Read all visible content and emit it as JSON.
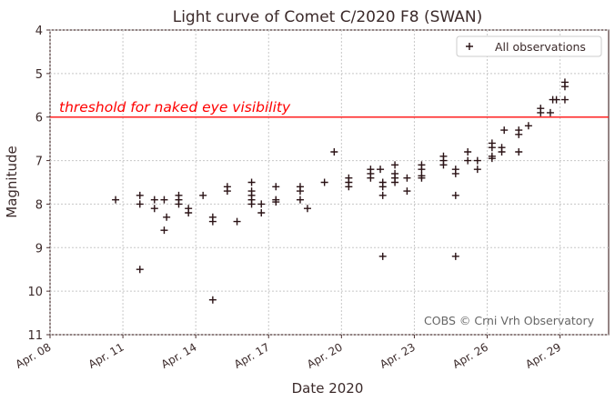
{
  "chart_data": {
    "type": "scatter",
    "title": "Light curve of Comet C/2020 F8 (SWAN)",
    "xlabel": "Date 2020",
    "ylabel": "Magnitude",
    "xlim": [
      8,
      31
    ],
    "ylim": [
      11,
      4
    ],
    "y_inverted": true,
    "grid": true,
    "x_ticks": [
      {
        "value": 8,
        "label": "Apr. 08"
      },
      {
        "value": 11,
        "label": "Apr. 11"
      },
      {
        "value": 14,
        "label": "Apr. 14"
      },
      {
        "value": 17,
        "label": "Apr. 17"
      },
      {
        "value": 20,
        "label": "Apr. 20"
      },
      {
        "value": 23,
        "label": "Apr. 23"
      },
      {
        "value": 26,
        "label": "Apr. 26"
      },
      {
        "value": 29,
        "label": "Apr. 29"
      }
    ],
    "y_ticks": [
      4,
      5,
      6,
      7,
      8,
      9,
      10,
      11
    ],
    "legend": {
      "position": "top-right",
      "entries": [
        "All observations"
      ]
    },
    "series": [
      {
        "name": "All observations",
        "marker": "+",
        "color": "#2a1215",
        "points": [
          [
            10.7,
            7.9
          ],
          [
            11.7,
            7.8
          ],
          [
            11.7,
            8.0
          ],
          [
            11.7,
            9.5
          ],
          [
            12.3,
            7.9
          ],
          [
            12.3,
            8.1
          ],
          [
            12.7,
            7.9
          ],
          [
            12.8,
            8.3
          ],
          [
            12.7,
            8.6
          ],
          [
            13.3,
            7.8
          ],
          [
            13.3,
            7.9
          ],
          [
            13.3,
            8.0
          ],
          [
            13.7,
            8.1
          ],
          [
            13.7,
            8.2
          ],
          [
            14.3,
            7.8
          ],
          [
            14.7,
            8.3
          ],
          [
            14.7,
            8.4
          ],
          [
            14.7,
            10.2
          ],
          [
            15.3,
            7.6
          ],
          [
            15.3,
            7.7
          ],
          [
            15.7,
            8.4
          ],
          [
            16.3,
            7.5
          ],
          [
            16.3,
            7.7
          ],
          [
            16.3,
            7.8
          ],
          [
            16.3,
            7.9
          ],
          [
            16.3,
            8.0
          ],
          [
            16.7,
            8.0
          ],
          [
            16.7,
            8.2
          ],
          [
            17.3,
            7.6
          ],
          [
            17.3,
            7.9
          ],
          [
            17.3,
            7.95
          ],
          [
            18.3,
            7.6
          ],
          [
            18.3,
            7.7
          ],
          [
            18.3,
            7.9
          ],
          [
            18.6,
            8.1
          ],
          [
            19.3,
            7.5
          ],
          [
            19.7,
            6.8
          ],
          [
            20.3,
            7.4
          ],
          [
            20.3,
            7.5
          ],
          [
            20.3,
            7.6
          ],
          [
            21.2,
            7.2
          ],
          [
            21.2,
            7.3
          ],
          [
            21.2,
            7.4
          ],
          [
            21.6,
            7.2
          ],
          [
            21.7,
            7.5
          ],
          [
            21.7,
            7.6
          ],
          [
            21.7,
            7.8
          ],
          [
            21.7,
            9.2
          ],
          [
            22.2,
            7.1
          ],
          [
            22.2,
            7.3
          ],
          [
            22.2,
            7.4
          ],
          [
            22.2,
            7.5
          ],
          [
            22.7,
            7.4
          ],
          [
            22.7,
            7.7
          ],
          [
            23.3,
            7.1
          ],
          [
            23.3,
            7.2
          ],
          [
            23.3,
            7.35
          ],
          [
            23.3,
            7.4
          ],
          [
            24.2,
            6.9
          ],
          [
            24.2,
            7.0
          ],
          [
            24.2,
            7.1
          ],
          [
            24.7,
            7.2
          ],
          [
            24.7,
            7.3
          ],
          [
            24.7,
            7.8
          ],
          [
            24.7,
            9.2
          ],
          [
            25.2,
            6.8
          ],
          [
            25.2,
            7.0
          ],
          [
            25.6,
            7.0
          ],
          [
            25.6,
            7.2
          ],
          [
            26.2,
            6.6
          ],
          [
            26.2,
            6.7
          ],
          [
            26.2,
            6.9
          ],
          [
            26.2,
            6.95
          ],
          [
            26.6,
            6.7
          ],
          [
            26.6,
            6.8
          ],
          [
            26.7,
            6.3
          ],
          [
            27.3,
            6.3
          ],
          [
            27.3,
            6.4
          ],
          [
            27.3,
            6.8
          ],
          [
            27.7,
            6.2
          ],
          [
            28.2,
            5.8
          ],
          [
            28.2,
            5.9
          ],
          [
            28.6,
            5.9
          ],
          [
            28.7,
            5.6
          ],
          [
            28.85,
            5.6
          ],
          [
            29.2,
            5.2
          ],
          [
            29.2,
            5.3
          ],
          [
            29.2,
            5.6
          ]
        ]
      }
    ],
    "threshold": {
      "value": 6.0,
      "label": "threshold for naked eye visibility",
      "color": "#ff2020"
    },
    "annotation": "COBS © Crni Vrh Observatory"
  }
}
